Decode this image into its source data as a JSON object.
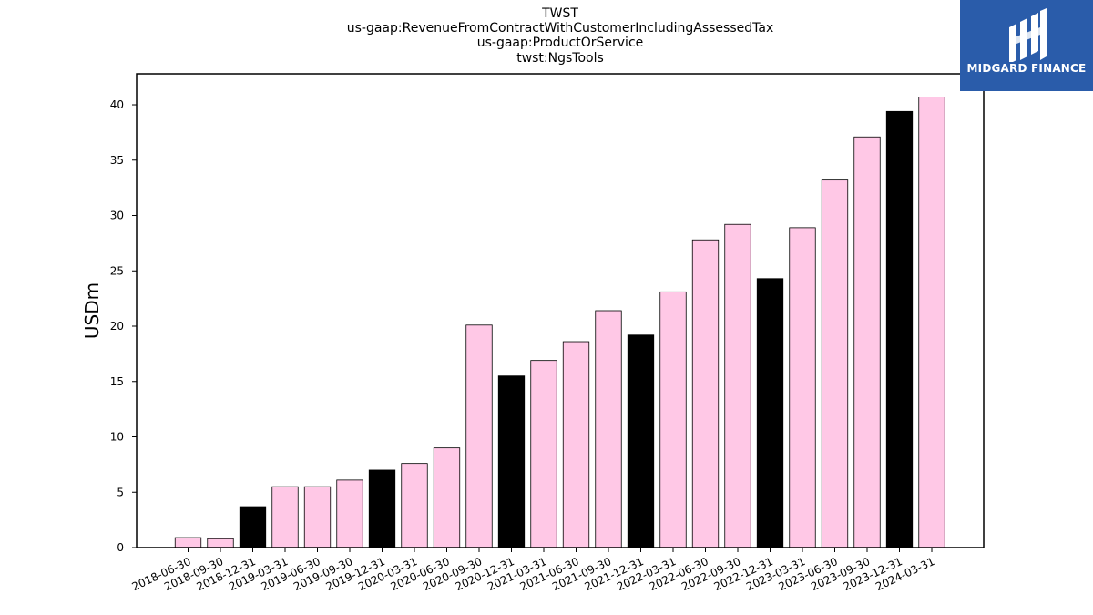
{
  "chart_data": {
    "type": "bar",
    "title_lines": [
      "TWST",
      "us-gaap:RevenueFromContractWithCustomerIncludingAssessedTax",
      "us-gaap:ProductOrService",
      "twst:NgsTools"
    ],
    "ylabel": "USDm",
    "xlabel": "",
    "ylim": [
      0,
      42.8
    ],
    "yticks": [
      0,
      5,
      10,
      15,
      20,
      25,
      30,
      35,
      40
    ],
    "categories": [
      "2018-06-30",
      "2018-09-30",
      "2018-12-31",
      "2019-03-31",
      "2019-06-30",
      "2019-09-30",
      "2019-12-31",
      "2020-03-31",
      "2020-06-30",
      "2020-09-30",
      "2020-12-31",
      "2021-03-31",
      "2021-06-30",
      "2021-09-30",
      "2021-12-31",
      "2022-03-31",
      "2022-06-30",
      "2022-09-30",
      "2022-12-31",
      "2023-03-31",
      "2023-06-30",
      "2023-09-30",
      "2023-12-31",
      "2024-03-31"
    ],
    "values": [
      0.9,
      0.8,
      3.7,
      5.5,
      5.5,
      6.1,
      7.0,
      7.6,
      9.0,
      20.1,
      15.5,
      16.9,
      18.6,
      21.4,
      19.2,
      23.1,
      27.8,
      29.2,
      24.3,
      28.9,
      33.2,
      37.1,
      39.4,
      40.7
    ],
    "highlight": [
      false,
      false,
      true,
      false,
      false,
      false,
      true,
      false,
      false,
      false,
      true,
      false,
      false,
      false,
      true,
      false,
      false,
      false,
      true,
      false,
      false,
      false,
      true,
      false
    ],
    "colors": {
      "normal": "#ffc8e6",
      "highlight": "#000000",
      "edge": "#000000"
    },
    "grid": false,
    "legend": "none"
  },
  "logo": {
    "text": "MIDGARD FINANCE",
    "background": "#2a5caa"
  }
}
